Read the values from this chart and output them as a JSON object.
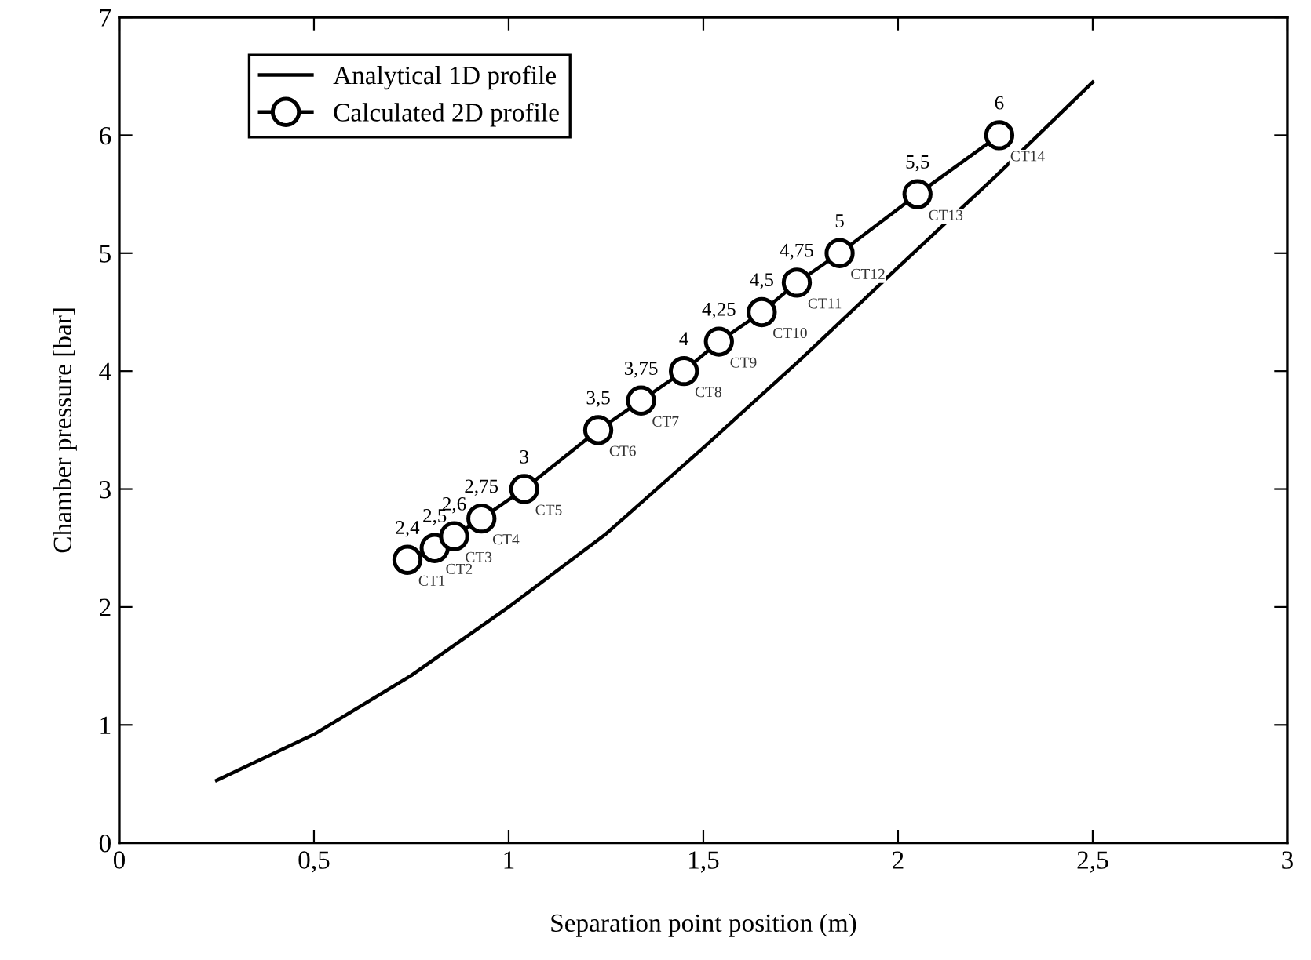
{
  "chart_data": {
    "type": "line",
    "xlabel": "Separation point position (m)",
    "ylabel": "Chamber pressure [bar]",
    "xlim": [
      0,
      3
    ],
    "ylim": [
      0,
      7
    ],
    "xticks": [
      0,
      {
        "value": 0.5,
        "label": "0,5"
      },
      1,
      {
        "value": 1.5,
        "label": "1,5"
      },
      2,
      {
        "value": 2.5,
        "label": "2,5"
      },
      3
    ],
    "yticks": [
      0,
      1,
      2,
      3,
      4,
      5,
      6,
      7
    ],
    "grid": false,
    "legend": "top left",
    "line_style": "solid",
    "series": [
      {
        "name": "Analytical 1D profile",
        "color": "#000000",
        "marker": "none",
        "x": [
          0.25,
          0.5,
          0.75,
          1.0,
          1.25,
          1.5,
          1.75,
          2.0,
          2.25,
          2.5
        ],
        "values": [
          0.53,
          0.92,
          1.42,
          2.0,
          2.62,
          3.35,
          4.1,
          4.88,
          5.65,
          6.45
        ]
      },
      {
        "name": "Calculated 2D profile",
        "color": "#000000",
        "marker": "circle",
        "x": [
          0.74,
          0.81,
          0.86,
          0.93,
          1.04,
          1.23,
          1.34,
          1.45,
          1.54,
          1.65,
          1.74,
          1.85,
          2.05,
          2.26
        ],
        "values": [
          2.4,
          2.5,
          2.6,
          2.75,
          3,
          3.5,
          3.75,
          4,
          4.25,
          4.5,
          4.75,
          5,
          5.5,
          6
        ],
        "value_labels": [
          "2,4",
          "2,5",
          "2,6",
          "2,75",
          "3",
          "3,5",
          "3,75",
          "4",
          "4,25",
          "4,5",
          "4,75",
          "5",
          "5,5",
          "6"
        ]
      }
    ],
    "annotations": [
      {
        "text": "CT1",
        "x": 0.74,
        "y": 2.4
      },
      {
        "text": "CT2",
        "x": 0.81,
        "y": 2.5
      },
      {
        "text": "CT3",
        "x": 0.86,
        "y": 2.6
      },
      {
        "text": "CT4",
        "x": 0.93,
        "y": 2.75
      },
      {
        "text": "CT5",
        "x": 1.04,
        "y": 3
      },
      {
        "text": "CT6",
        "x": 1.23,
        "y": 3.5
      },
      {
        "text": "CT7",
        "x": 1.34,
        "y": 3.75
      },
      {
        "text": "CT8",
        "x": 1.45,
        "y": 4
      },
      {
        "text": "CT9",
        "x": 1.54,
        "y": 4.25
      },
      {
        "text": "CT10",
        "x": 1.65,
        "y": 4.5
      },
      {
        "text": "CT11",
        "x": 1.74,
        "y": 4.75
      },
      {
        "text": "CT12",
        "x": 1.85,
        "y": 5
      },
      {
        "text": "CT13",
        "x": 2.05,
        "y": 5.5
      },
      {
        "text": "CT14",
        "x": 2.26,
        "y": 6
      }
    ]
  }
}
